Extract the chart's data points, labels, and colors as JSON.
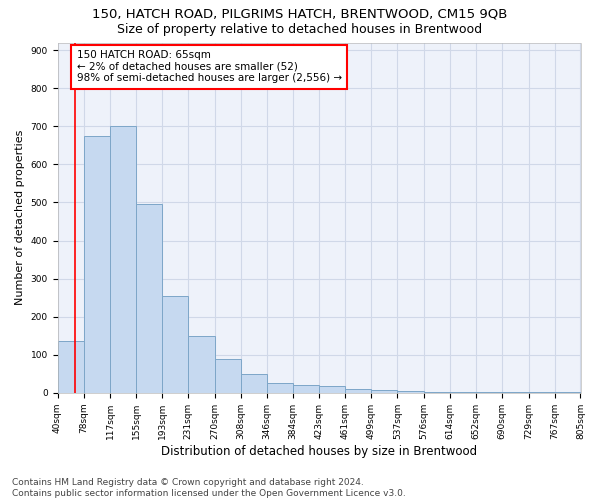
{
  "title": "150, HATCH ROAD, PILGRIMS HATCH, BRENTWOOD, CM15 9QB",
  "subtitle": "Size of property relative to detached houses in Brentwood",
  "xlabel": "Distribution of detached houses by size in Brentwood",
  "ylabel": "Number of detached properties",
  "bar_left_edges": [
    40,
    78,
    117,
    155,
    193,
    231,
    270,
    308,
    346,
    384,
    423,
    461,
    499,
    537,
    576,
    614,
    652,
    690,
    729,
    767
  ],
  "bar_widths": [
    38,
    39,
    38,
    38,
    38,
    39,
    38,
    38,
    38,
    39,
    38,
    38,
    38,
    39,
    38,
    38,
    38,
    39,
    38,
    38
  ],
  "bar_heights": [
    135,
    675,
    700,
    495,
    255,
    150,
    88,
    50,
    25,
    20,
    18,
    10,
    7,
    5,
    3,
    2,
    1,
    1,
    1,
    1
  ],
  "bar_color": "#c6d9f0",
  "bar_edge_color": "#7da6c8",
  "grid_color": "#d0d8e8",
  "bg_color": "#eef2fa",
  "annotation_text": "150 HATCH ROAD: 65sqm\n← 2% of detached houses are smaller (52)\n98% of semi-detached houses are larger (2,556) →",
  "vline_x": 65,
  "vline_color": "red",
  "ylim": [
    0,
    920
  ],
  "yticks": [
    0,
    100,
    200,
    300,
    400,
    500,
    600,
    700,
    800,
    900
  ],
  "tick_labels": [
    "40sqm",
    "78sqm",
    "117sqm",
    "155sqm",
    "193sqm",
    "231sqm",
    "270sqm",
    "308sqm",
    "346sqm",
    "384sqm",
    "423sqm",
    "461sqm",
    "499sqm",
    "537sqm",
    "576sqm",
    "614sqm",
    "652sqm",
    "690sqm",
    "729sqm",
    "767sqm",
    "805sqm"
  ],
  "footer_text": "Contains HM Land Registry data © Crown copyright and database right 2024.\nContains public sector information licensed under the Open Government Licence v3.0.",
  "title_fontsize": 9.5,
  "subtitle_fontsize": 9,
  "xlabel_fontsize": 8.5,
  "ylabel_fontsize": 8,
  "tick_fontsize": 6.5,
  "annotation_fontsize": 7.5,
  "footer_fontsize": 6.5
}
